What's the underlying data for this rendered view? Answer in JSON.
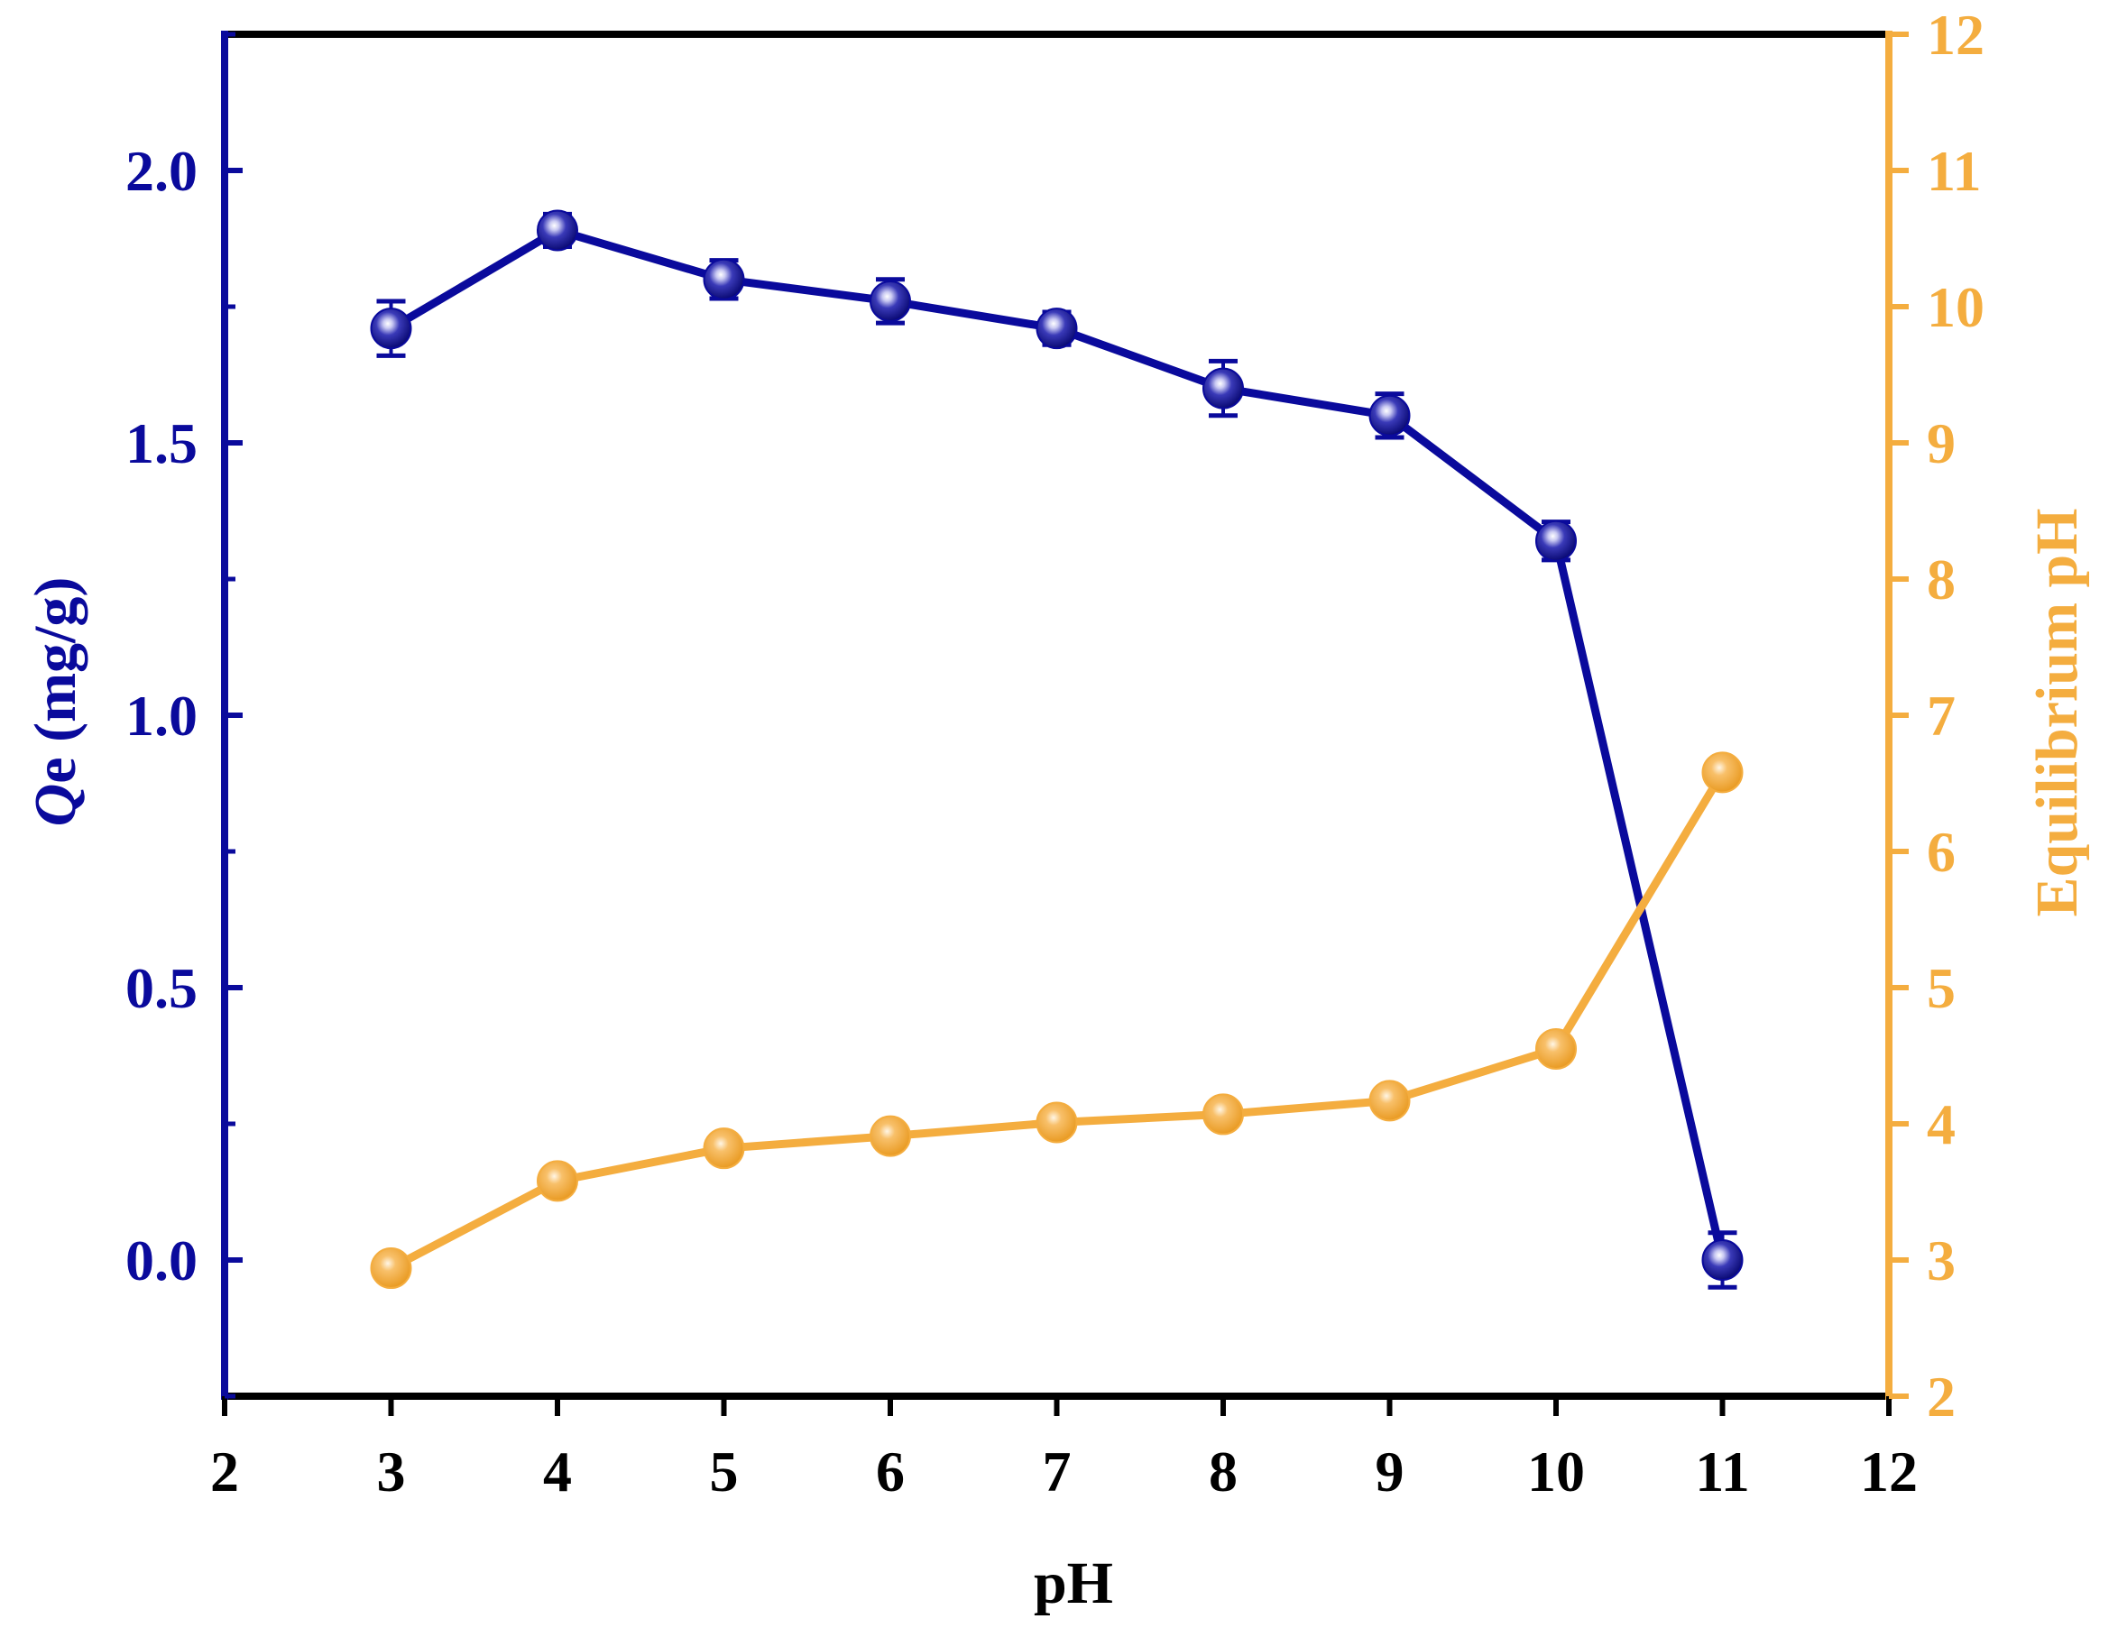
{
  "chart_data": {
    "type": "line",
    "x": [
      3,
      4,
      5,
      6,
      7,
      8,
      9,
      10,
      11
    ],
    "xlabel": "pH",
    "xlim": [
      2,
      12
    ],
    "xticks": [
      2,
      3,
      4,
      5,
      6,
      7,
      8,
      9,
      10,
      11,
      12
    ],
    "ylabel_left_italic": "Q",
    "ylabel_left_rest": "e (mg/g)",
    "ylim_left": [
      -0.25,
      2.25
    ],
    "yticks_left": [
      "0.0",
      "0.5",
      "1.0",
      "1.5",
      "2.0"
    ],
    "ylabel_right": "Equilibrium pH",
    "ylim_right": [
      2,
      12
    ],
    "yticks_right": [
      2,
      3,
      4,
      5,
      6,
      7,
      8,
      9,
      10,
      11,
      12
    ],
    "grid": false,
    "series": [
      {
        "axis": "left",
        "color": "#0a0a9c",
        "values": [
          1.71,
          1.89,
          1.8,
          1.76,
          1.71,
          1.6,
          1.55,
          1.32,
          0.0
        ],
        "errors": [
          0.05,
          0.03,
          0.035,
          0.04,
          0.03,
          0.05,
          0.04,
          0.035,
          0.05
        ]
      },
      {
        "axis": "right",
        "color": "#f4ad3f",
        "values": [
          2.94,
          3.58,
          3.82,
          3.91,
          4.01,
          4.07,
          4.17,
          4.55,
          6.58
        ],
        "errors": [
          0.05,
          0.05,
          0.05,
          0.05,
          0.05,
          0.05,
          0.05,
          0.05,
          0.05
        ]
      }
    ]
  }
}
